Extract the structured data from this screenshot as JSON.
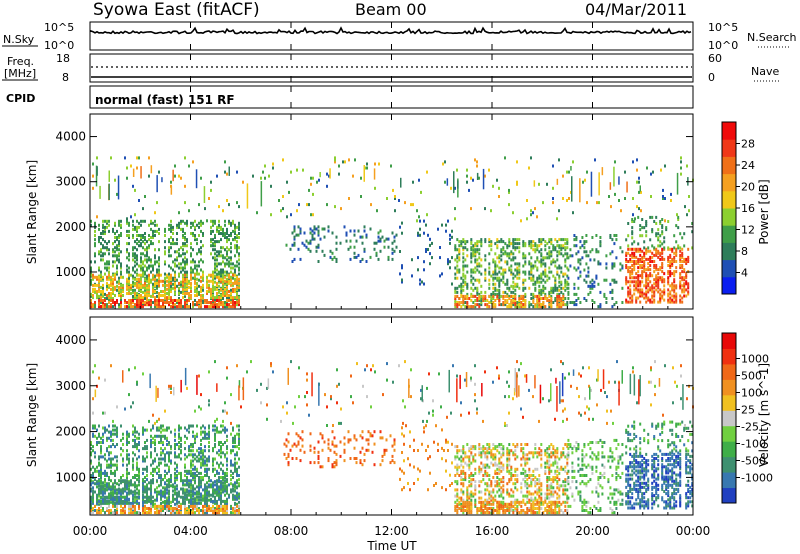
{
  "header": {
    "station": "Syowa East (fitACF)",
    "beam": "Beam 00",
    "date": "04/Mar/2011"
  },
  "top_panels": {
    "nsky_label": "N.Sky",
    "nsky_ticks": [
      "10^5",
      "10^0"
    ],
    "nsearch_label": "N.Search",
    "nsearch_ticks": [
      "10^5",
      "10^0"
    ],
    "freq_label": [
      "Freq.",
      "[MHz]"
    ],
    "freq_ticks": [
      "18",
      "8"
    ],
    "nave_label": "Nave",
    "nave_ticks": [
      "60",
      "0"
    ],
    "cpid_label": "CPID",
    "cpid_text": "normal (fast) 151 RF"
  },
  "chart_data": [
    {
      "type": "heatmap",
      "name": "power",
      "ylabel": "Slant Range [km]",
      "yticks": [
        "1000",
        "2000",
        "3000",
        "4000"
      ],
      "ylim": [
        180,
        4500
      ],
      "xlim": [
        0,
        24
      ],
      "colorbar_label": "Power [dB]",
      "colorbar_ticks": [
        "4",
        "8",
        "12",
        "16",
        "20",
        "24",
        "28"
      ],
      "colorbar_colors": [
        "#0a1ef0",
        "#1f4fb4",
        "#2e7d5a",
        "#3f9e48",
        "#8ccf30",
        "#f0c818",
        "#f5a020",
        "#f07018",
        "#f03818",
        "#f00a0a"
      ]
    },
    {
      "type": "heatmap",
      "name": "velocity",
      "ylabel": "Slant Range [km]",
      "yticks": [
        "1000",
        "2000",
        "3000",
        "4000"
      ],
      "ylim": [
        180,
        4500
      ],
      "xlim": [
        0,
        24
      ],
      "colorbar_label": "Velocity [m s^-1]",
      "colorbar_ticks": [
        "1000",
        "500",
        "100",
        "25",
        "-25",
        "-100",
        "-500",
        "-1000"
      ],
      "colorbar_colors": [
        "#2040c0",
        "#3878b0",
        "#3e9070",
        "#3fae48",
        "#70d040",
        "#c8c8c8",
        "#f0c020",
        "#f09020",
        "#f06818",
        "#f03010",
        "#e80808"
      ]
    }
  ],
  "x_axis": {
    "ticks": [
      "00:00",
      "04:00",
      "08:00",
      "12:00",
      "16:00",
      "20:00",
      "00:00"
    ],
    "label": "Time UT"
  }
}
